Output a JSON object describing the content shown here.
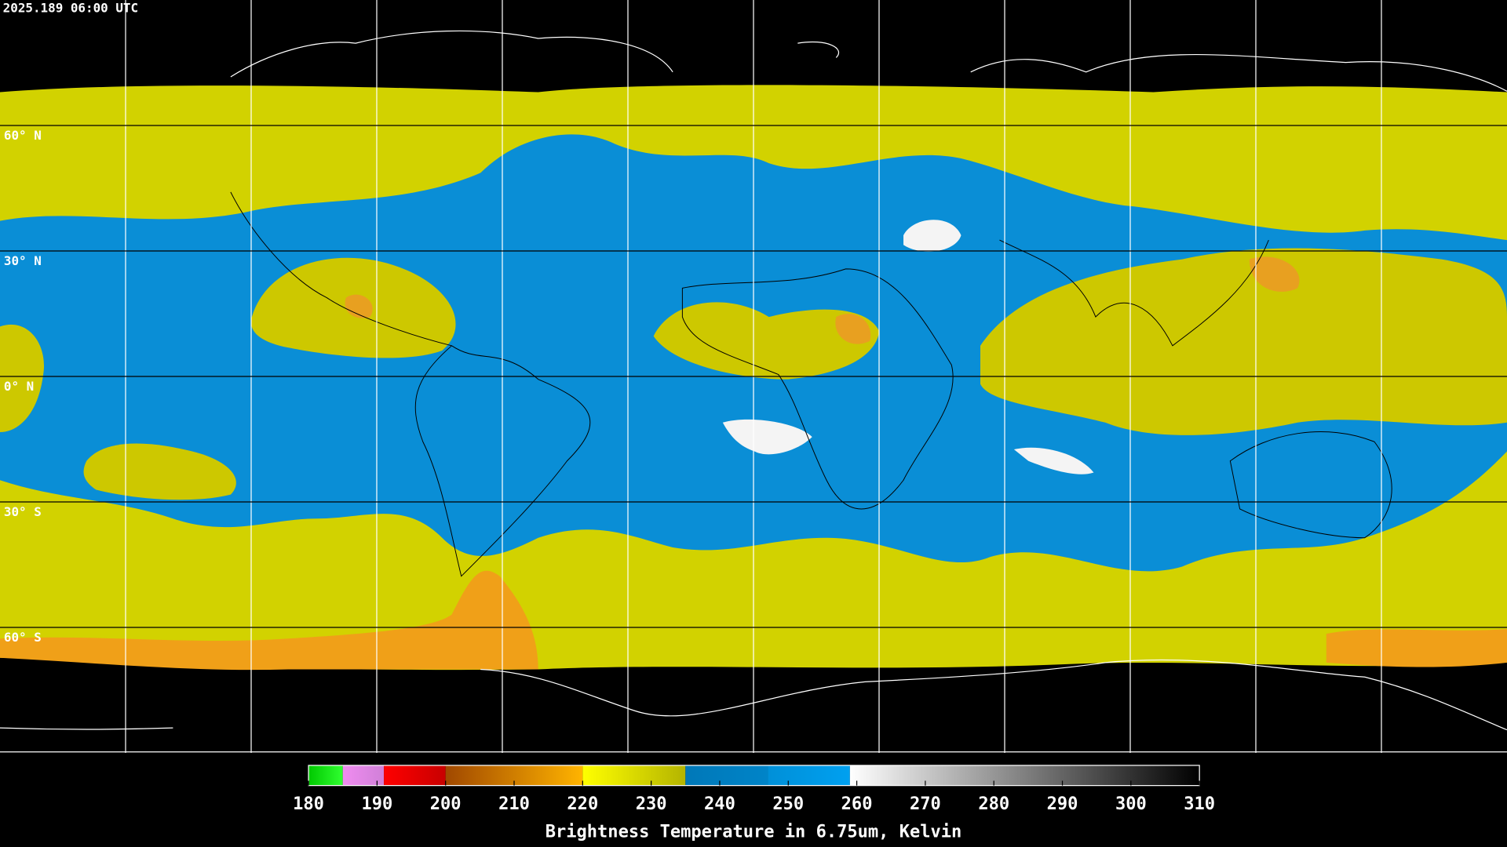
{
  "header": {
    "timestamp": "2025.189 06:00 UTC"
  },
  "map": {
    "lat_lines": [
      {
        "value": 60,
        "label": "60° N"
      },
      {
        "value": 30,
        "label": "30° N"
      },
      {
        "value": 0,
        "label": "0° N"
      },
      {
        "value": -30,
        "label": "30° S"
      },
      {
        "value": -60,
        "label": "60° S"
      }
    ]
  },
  "colorbar": {
    "title": "Brightness Temperature in 6.75um, Kelvin",
    "lim": [
      180,
      310
    ],
    "ticks": [
      180,
      190,
      200,
      210,
      220,
      230,
      240,
      250,
      260,
      270,
      280,
      290,
      300,
      310
    ],
    "segments": [
      {
        "from": 180,
        "to": 185,
        "colors": [
          "#00c800",
          "#30ff30"
        ]
      },
      {
        "from": 185,
        "to": 191,
        "colors": [
          "#f08cf0",
          "#d080d8"
        ]
      },
      {
        "from": 191,
        "to": 200,
        "colors": [
          "#ff0000",
          "#c80000"
        ]
      },
      {
        "from": 200,
        "to": 220,
        "colors": [
          "#a04800",
          "#ffb400"
        ]
      },
      {
        "from": 220,
        "to": 235,
        "colors": [
          "#ffff00",
          "#b4b400"
        ]
      },
      {
        "from": 235,
        "to": 247,
        "colors": [
          "#0078b8",
          "#0084c8"
        ]
      },
      {
        "from": 247,
        "to": 259,
        "colors": [
          "#0090d8",
          "#00a0f0"
        ]
      },
      {
        "from": 259,
        "to": 310,
        "colors": [
          "#ffffff",
          "#000000"
        ]
      }
    ]
  }
}
